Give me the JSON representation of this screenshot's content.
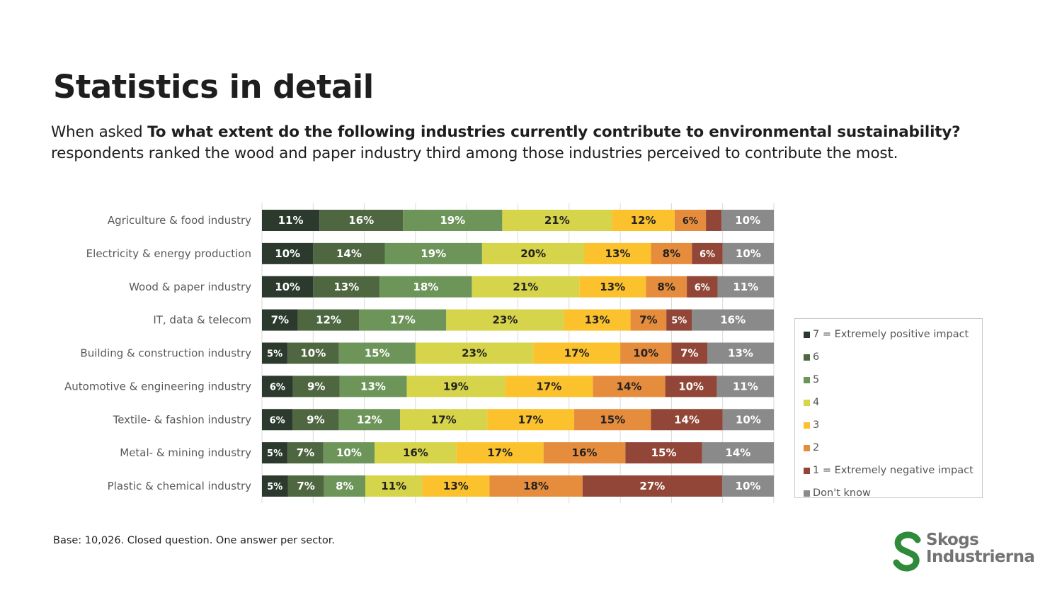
{
  "page": {
    "title": "Statistics in detail",
    "subtitle_lead": "When asked ",
    "subtitle_question": "To what extent do the following industries currently contribute to environmental sustainability?",
    "subtitle_tail": "respondents ranked the wood and paper industry third among those industries perceived to contribute the most.",
    "base_note": "Base: 10,026. Closed question. One answer per sector.",
    "logo": {
      "line1": "Skogs",
      "line2": "Industrierna",
      "color": "#2e8b3a"
    }
  },
  "chart_data": {
    "type": "bar",
    "orientation": "horizontal",
    "stacked": true,
    "normalized": true,
    "xlim": [
      0,
      100
    ],
    "grid": true,
    "legend_position": "right",
    "categories": [
      "Agriculture & food industry",
      "Electricity & energy production",
      "Wood & paper industry",
      "IT, data & telecom",
      "Building & construction industry",
      "Automotive & engineering industry",
      "Textile- & fashion industry",
      "Metal- & mining industry",
      "Plastic & chemical industry"
    ],
    "series": [
      {
        "name": "7 = Extremely positive impact",
        "color": "#2c3a2e",
        "label_color": "#ffffff",
        "values": [
          11,
          10,
          10,
          7,
          5,
          6,
          6,
          5,
          5
        ]
      },
      {
        "name": "6",
        "color": "#4f6741",
        "label_color": "#ffffff",
        "values": [
          16,
          14,
          13,
          12,
          10,
          9,
          9,
          7,
          7
        ]
      },
      {
        "name": "5",
        "color": "#6d955a",
        "label_color": "#ffffff",
        "values": [
          19,
          19,
          18,
          17,
          15,
          13,
          12,
          10,
          8
        ]
      },
      {
        "name": "4",
        "color": "#d5d44a",
        "label_color": "#222222",
        "values": [
          21,
          20,
          21,
          23,
          23,
          19,
          17,
          16,
          11
        ]
      },
      {
        "name": "3",
        "color": "#fbc22d",
        "label_color": "#222222",
        "values": [
          12,
          13,
          13,
          13,
          17,
          17,
          17,
          17,
          13
        ]
      },
      {
        "name": "2",
        "color": "#e68d3d",
        "label_color": "#222222",
        "values": [
          6,
          8,
          8,
          7,
          10,
          14,
          15,
          16,
          18
        ]
      },
      {
        "name": "1 = Extremely negative impact",
        "color": "#914637",
        "label_color": "#ffffff",
        "values": [
          3,
          6,
          6,
          5,
          7,
          10,
          14,
          15,
          27
        ]
      },
      {
        "name": "Don't know",
        "color": "#8a8a8a",
        "label_color": "#ffffff",
        "values": [
          10,
          10,
          11,
          16,
          13,
          11,
          10,
          14,
          10
        ]
      }
    ],
    "data_labels": [
      [
        "11%",
        "16%",
        "19%",
        "21%",
        "12%",
        "6%",
        "",
        "10%"
      ],
      [
        "10%",
        "14%",
        "19%",
        "20%",
        "13%",
        "8%",
        "6%",
        "10%"
      ],
      [
        "10%",
        "13%",
        "18%",
        "21%",
        "13%",
        "8%",
        "6%",
        "11%"
      ],
      [
        "7%",
        "12%",
        "17%",
        "23%",
        "13%",
        "7%",
        "5%",
        "16%"
      ],
      [
        "5%",
        "10%",
        "15%",
        "23%",
        "17%",
        "10%",
        "7%",
        "13%"
      ],
      [
        "6%",
        "9%",
        "13%",
        "19%",
        "17%",
        "14%",
        "10%",
        "11%"
      ],
      [
        "6%",
        "9%",
        "12%",
        "17%",
        "17%",
        "15%",
        "14%",
        "10%"
      ],
      [
        "5%",
        "7%",
        "10%",
        "16%",
        "17%",
        "16%",
        "15%",
        "14%"
      ],
      [
        "5%",
        "7%",
        "8%",
        "11%",
        "13%",
        "18%",
        "27%",
        "10%"
      ]
    ]
  }
}
